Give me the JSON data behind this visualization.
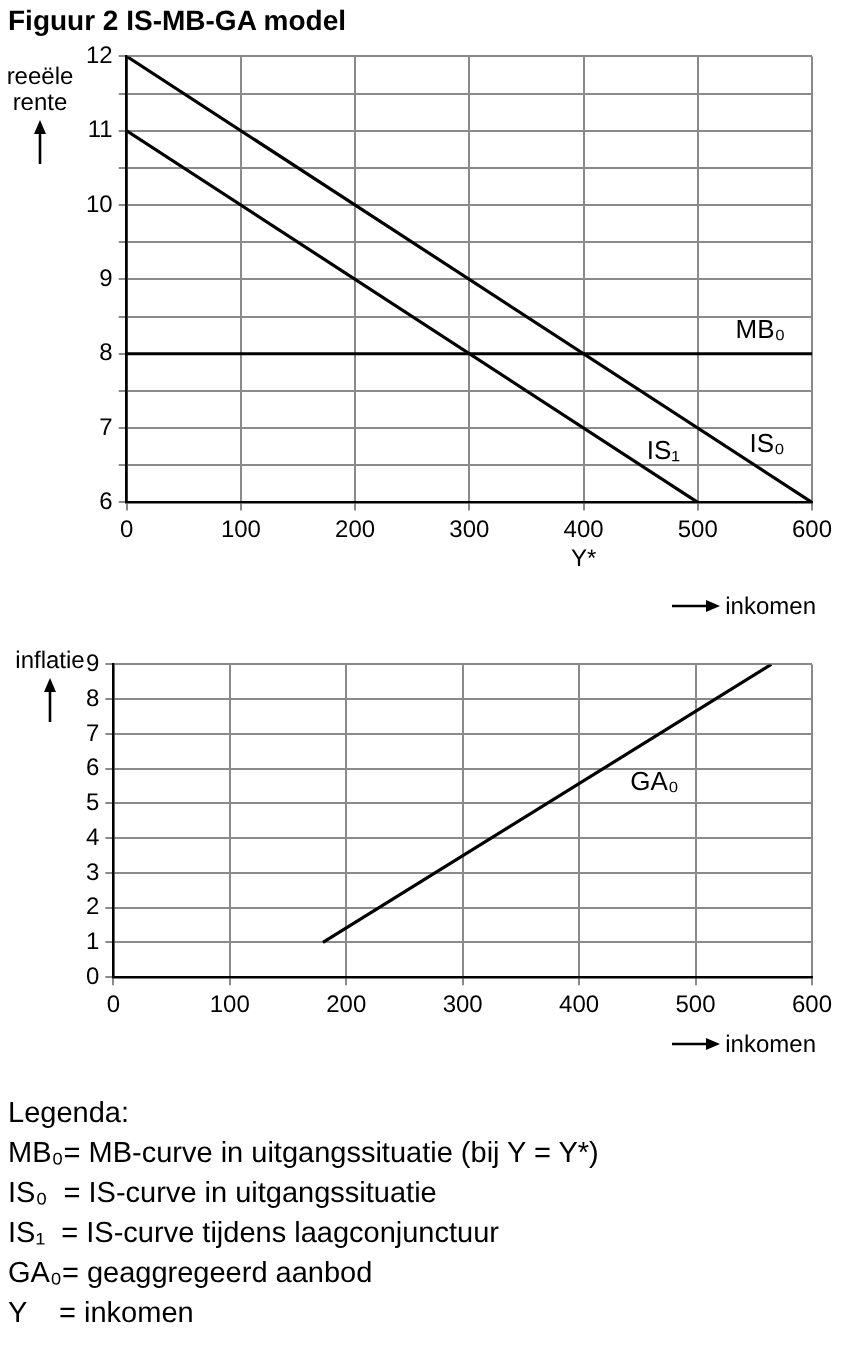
{
  "chart_data": [
    {
      "type": "line",
      "title": "Figuur 2  IS-MB-GA model",
      "xlabel": "inkomen",
      "ylabel": "reeële rente",
      "xlim": [
        0,
        600
      ],
      "xticks": [
        0,
        100,
        200,
        300,
        {
          "value": 400,
          "label": "400\nY*"
        },
        500,
        600
      ],
      "ylim": [
        6,
        12
      ],
      "yticks": [
        6,
        {
          "value": 6.5,
          "label": null
        },
        7,
        {
          "value": 7.5,
          "label": null
        },
        8,
        {
          "value": 8.5,
          "label": null
        },
        9,
        {
          "value": 9.5,
          "label": null
        },
        10,
        {
          "value": 10.5,
          "label": null
        },
        11,
        {
          "value": 11.5,
          "label": null
        },
        12
      ],
      "grid": true,
      "legend": false,
      "marker": "none",
      "line_style": "solid",
      "series": [
        {
          "name": "IS₀",
          "color": "#000000",
          "x": [
            0,
            600
          ],
          "values": [
            12,
            6
          ]
        },
        {
          "name": "IS₁",
          "color": "#000000",
          "x": [
            0,
            500
          ],
          "values": [
            11,
            6
          ]
        },
        {
          "name": "MB₀",
          "color": "#000000",
          "x": [
            0,
            600
          ],
          "values": [
            8,
            8
          ]
        }
      ]
    },
    {
      "type": "line",
      "xlabel": "inkomen",
      "ylabel": "inflatie",
      "xlim": [
        0,
        600
      ],
      "xticks": [
        0,
        100,
        200,
        300,
        400,
        500,
        600
      ],
      "ylim": [
        0,
        9
      ],
      "yticks": [
        0,
        1,
        2,
        3,
        4,
        5,
        6,
        7,
        8,
        9
      ],
      "grid": true,
      "legend": false,
      "marker": "none",
      "line_style": "solid",
      "series": [
        {
          "name": "GA₀",
          "color": "#000000",
          "x": [
            180,
            565
          ],
          "values": [
            1,
            9
          ]
        }
      ],
      "annotations": [
        "Legenda:",
        "MB₀= MB-curve in uitgangssituatie (bij Y = Y*)",
        "IS₀  = IS-curve in uitgangssituatie",
        "IS₁  = IS-curve tijdens laagconjunctuur",
        "GA₀= geaggregeerd aanbod",
        "Y    = inkomen"
      ]
    }
  ]
}
